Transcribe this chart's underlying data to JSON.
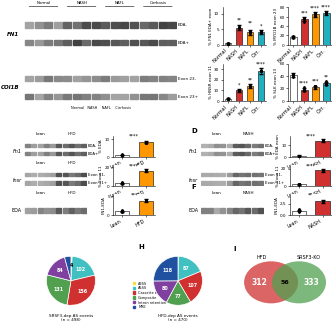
{
  "pie_g": {
    "values": [
      4,
      102,
      156,
      131,
      84,
      21
    ],
    "colors": [
      "#f0e040",
      "#40c0c0",
      "#d03030",
      "#50a050",
      "#8040a0",
      "#2050a0"
    ],
    "labels": [
      "A3SS",
      "A5SS",
      "Cassette exon",
      "Composite",
      "Intron retention",
      "MXE"
    ],
    "numbers": [
      "4",
      "102",
      "156",
      "131",
      "84",
      ""
    ],
    "title": "SRSF3-dep AS events",
    "subtitle": "(n = 498)"
  },
  "pie_h": {
    "values": [
      1,
      87,
      107,
      77,
      80,
      118
    ],
    "colors": [
      "#f0e040",
      "#40c0c0",
      "#d03030",
      "#50a050",
      "#8040a0",
      "#2050a0"
    ],
    "numbers": [
      "1",
      "87",
      "107",
      "77",
      "80",
      "118"
    ],
    "title": "HFD-dep AS events",
    "subtitle": "(n = 470)"
  },
  "venn_i": {
    "left_color": "#d03030",
    "right_color": "#50a050",
    "left_label": "HFD",
    "right_label": "SRSF3-KO",
    "left_num": "312",
    "overlap_num": "56",
    "right_num": "333"
  },
  "bar_colors_4": [
    "#ffffff",
    "#d03030",
    "#ff9800",
    "#20b0c0"
  ],
  "bar_colors_2_hfd": [
    "#ffffff",
    "#ff9800"
  ],
  "bar_colors_2_nash": [
    "#ffffff",
    "#d03030"
  ],
  "blot_bg": "#d8d8d8",
  "background": "#ffffff"
}
